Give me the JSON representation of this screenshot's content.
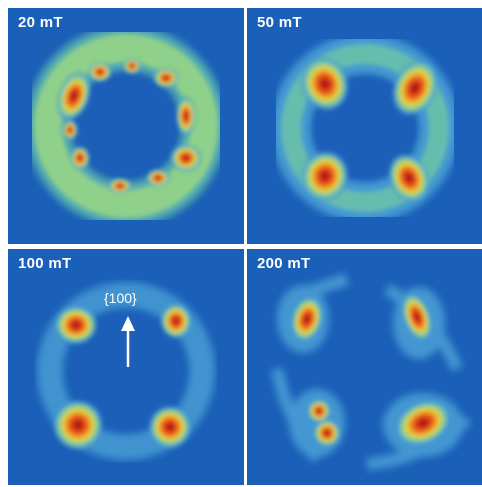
{
  "panels": [
    {
      "label": "20 mT"
    },
    {
      "label": "50 mT"
    },
    {
      "label": "100 mT",
      "annotation": "{100}"
    },
    {
      "label": "200 mT"
    }
  ],
  "colors": {
    "background": "#1a5fb8",
    "halo": "#4fa6d8",
    "low": "#6cc3a8",
    "mid": "#d8e64a",
    "high": "#f0a020",
    "peak": "#d42818",
    "core": "#7a1010",
    "text": "#ffffff"
  }
}
